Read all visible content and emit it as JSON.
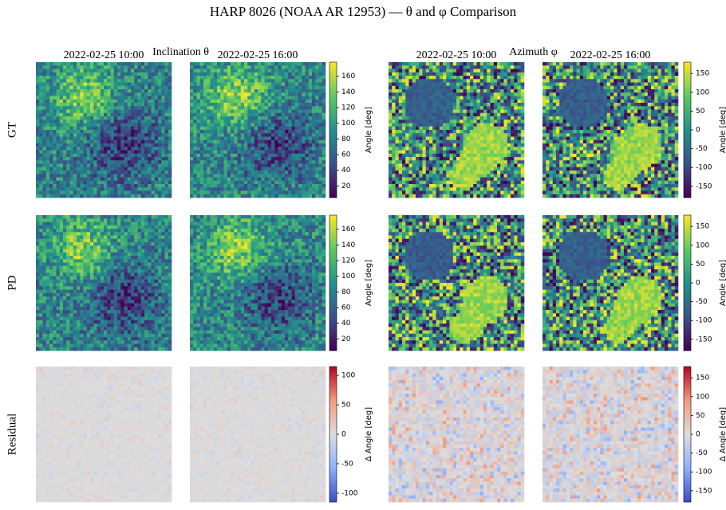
{
  "chart_data": {
    "type": "heatmap-grid",
    "title": "HARP 8026 (NOAA AR 12953) — θ and φ Comparison",
    "row_labels": [
      "GT",
      "PD",
      "Residual"
    ],
    "groups": [
      {
        "title": "Inclination θ",
        "times": [
          "2022-02-25 10:00",
          "2022-02-25 16:00"
        ]
      },
      {
        "title": "Azimuth φ",
        "times": [
          "2022-02-25 10:00",
          "2022-02-25 16:00"
        ]
      }
    ],
    "colorbars": [
      {
        "label": "Angle [deg]",
        "colormap": "viridis",
        "lim": [
          5,
          178
        ],
        "ticks": [
          20,
          40,
          60,
          80,
          100,
          120,
          140,
          160
        ]
      },
      {
        "label": "Δ Angle [deg]",
        "colormap": "coolwarm",
        "lim": [
          -115,
          115
        ],
        "ticks": [
          -100,
          -50,
          0,
          50,
          100
        ]
      },
      {
        "label": "Angle [deg]",
        "colormap": "viridis",
        "lim": [
          -180,
          180
        ],
        "ticks": [
          -150,
          -100,
          -50,
          0,
          50,
          100,
          150
        ]
      },
      {
        "label": "Δ Angle [deg]",
        "colormap": "coolwarm",
        "lim": [
          -180,
          180
        ],
        "ticks": [
          -150,
          -100,
          -50,
          0,
          50,
          100,
          150
        ]
      }
    ]
  }
}
